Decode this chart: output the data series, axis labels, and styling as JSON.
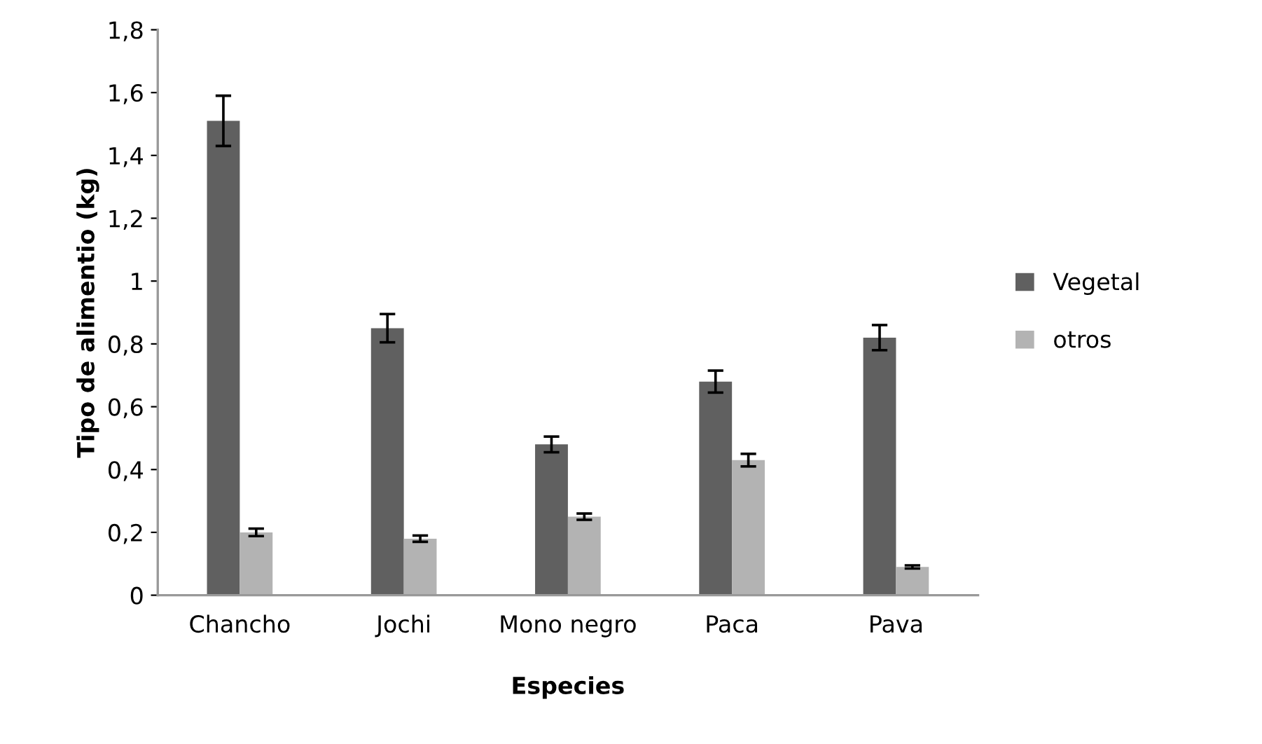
{
  "chart_data": {
    "type": "bar",
    "xlabel": "Especies",
    "ylabel": "Tipo de alimentio (kg)",
    "categories": [
      "Chancho",
      "Jochi",
      "Mono negro",
      "Paca",
      "Pava"
    ],
    "series": [
      {
        "name": "Vegetal",
        "color": "#606060",
        "values": [
          1.51,
          0.85,
          0.48,
          0.68,
          0.82
        ],
        "errors": [
          0.08,
          0.045,
          0.025,
          0.035,
          0.04
        ]
      },
      {
        "name": "otros",
        "color": "#b3b3b3",
        "values": [
          0.2,
          0.18,
          0.25,
          0.43,
          0.09
        ],
        "errors": [
          0.012,
          0.01,
          0.01,
          0.02,
          0.005
        ]
      }
    ],
    "ylim": [
      0,
      1.8
    ],
    "yticks": [
      {
        "value": 0,
        "label": "0"
      },
      {
        "value": 0.2,
        "label": "0,2"
      },
      {
        "value": 0.4,
        "label": "0,4"
      },
      {
        "value": 0.6,
        "label": "0,6"
      },
      {
        "value": 0.8,
        "label": "0,8"
      },
      {
        "value": 1,
        "label": "1"
      },
      {
        "value": 1.2,
        "label": "1,2"
      },
      {
        "value": 1.4,
        "label": "1,4"
      },
      {
        "value": 1.6,
        "label": "1,6"
      },
      {
        "value": 1.8,
        "label": "1,8"
      }
    ],
    "grid": false,
    "legend": "right"
  }
}
